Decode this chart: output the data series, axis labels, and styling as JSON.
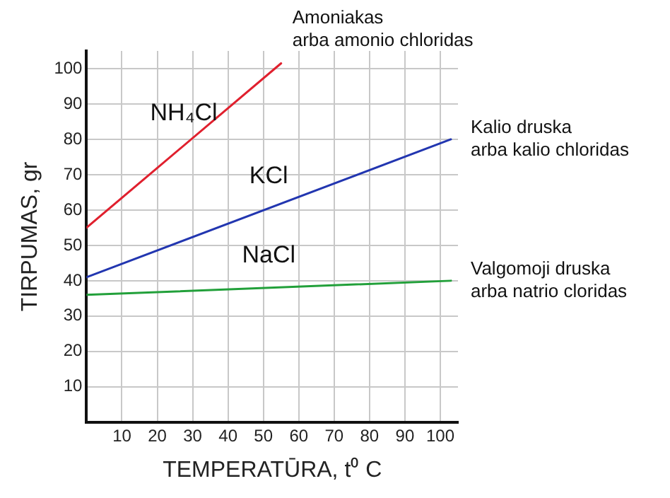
{
  "chart_data": {
    "type": "line",
    "xlabel": "TEMPERATŪRA, t⁰ C",
    "ylabel": "TIRPUMAS, gr",
    "series": [
      {
        "name": "NH₄Cl",
        "color": "#e0202e",
        "x": [
          0,
          55
        ],
        "values": [
          55,
          101.5
        ]
      },
      {
        "name": "KCl",
        "color": "#2236b0",
        "x": [
          0,
          103
        ],
        "values": [
          41,
          80
        ]
      },
      {
        "name": "NaCl",
        "color": "#22a03a",
        "x": [
          0,
          103
        ],
        "values": [
          36,
          40
        ]
      }
    ],
    "annotations": [
      "Amoniakas\narba amonio chloridas",
      "Kalio druska\narba kalio chloridas",
      "Valgomoji druska\narba natrio cloridas"
    ],
    "xlim": [
      0,
      105
    ],
    "xticks": [
      10,
      20,
      30,
      40,
      50,
      60,
      70,
      80,
      90,
      100
    ],
    "ylim": [
      0,
      105
    ],
    "yticks": [
      10,
      20,
      30,
      40,
      50,
      60,
      70,
      80,
      90,
      100
    ],
    "grid": true,
    "legend": false,
    "marker": "none",
    "line_style": "solid"
  }
}
